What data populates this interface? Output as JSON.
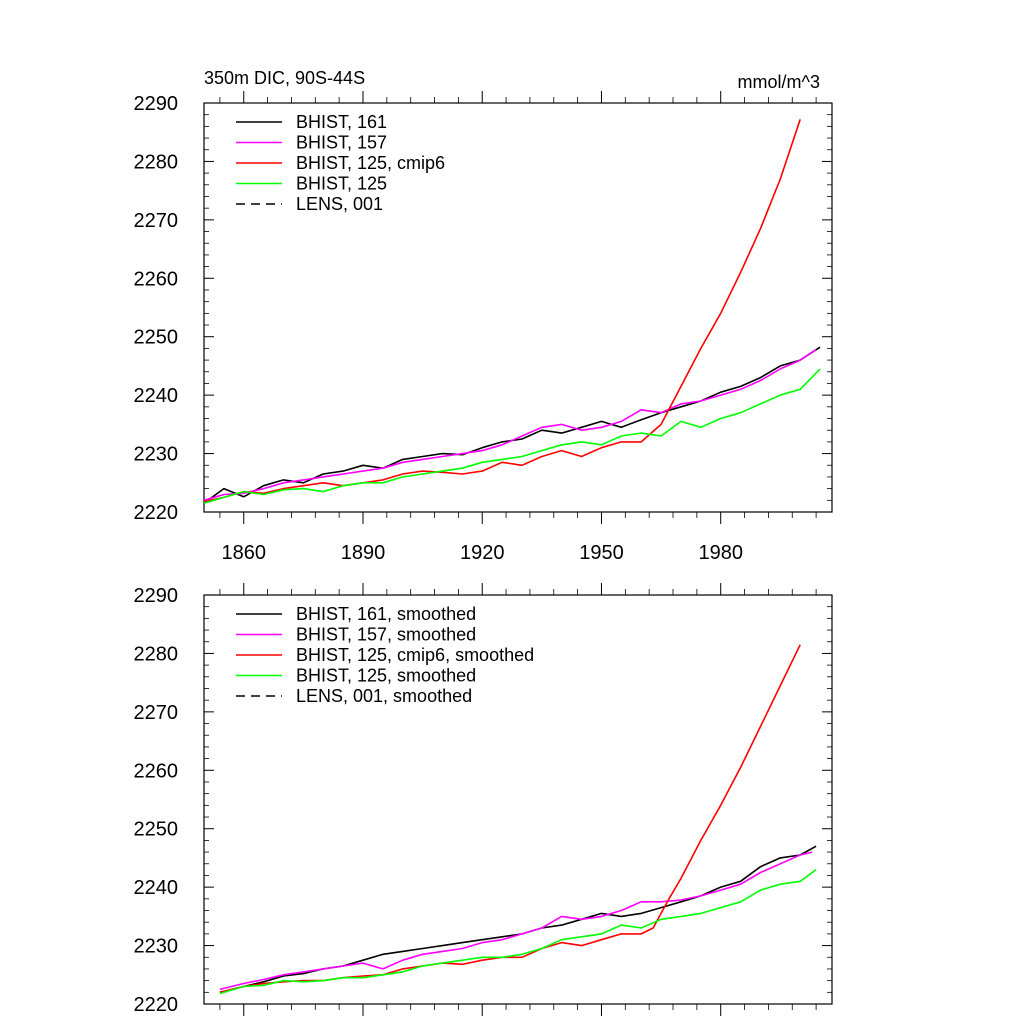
{
  "header": {
    "left_title": "350m DIC, 90S-44S",
    "right_title": "mmol/m^3"
  },
  "colors": {
    "black": "#000000",
    "magenta": "#ff00ff",
    "red": "#ff0000",
    "green": "#00ff00"
  },
  "chart_data": [
    {
      "type": "line",
      "xlim": [
        1850,
        2008
      ],
      "ylim": [
        2220,
        2290
      ],
      "yticks": [
        2220,
        2230,
        2240,
        2250,
        2260,
        2270,
        2280,
        2290
      ],
      "xticks": [
        1860,
        1890,
        1920,
        1950,
        1980
      ],
      "xtick_labels_shown": true,
      "legend": "top-left",
      "series": [
        {
          "name": "BHIST, 161",
          "color": "#000000",
          "dash": false,
          "x": [
            1850,
            1855,
            1860,
            1865,
            1870,
            1875,
            1880,
            1885,
            1890,
            1895,
            1900,
            1905,
            1910,
            1915,
            1920,
            1925,
            1930,
            1935,
            1940,
            1945,
            1950,
            1955,
            1960,
            1965,
            1970,
            1975,
            1980,
            1985,
            1990,
            1995,
            2000,
            2005
          ],
          "y": [
            2221.5,
            2224,
            2222.6,
            2224.5,
            2225.5,
            2225,
            2226.5,
            2227,
            2228,
            2227.5,
            2229,
            2229.5,
            2230,
            2229.8,
            2231,
            2232,
            2232.5,
            2234,
            2233.5,
            2234.5,
            2235.5,
            2234.5,
            2235.8,
            2237,
            2238,
            2239,
            2240.5,
            2241.5,
            2243,
            2245,
            2246,
            2248.2
          ]
        },
        {
          "name": "BHIST, 157",
          "color": "#ff00ff",
          "dash": false,
          "x": [
            1850,
            1855,
            1860,
            1865,
            1870,
            1875,
            1880,
            1885,
            1890,
            1895,
            1900,
            1905,
            1910,
            1915,
            1920,
            1925,
            1930,
            1935,
            1940,
            1945,
            1950,
            1955,
            1960,
            1965,
            1970,
            1975,
            1980,
            1985,
            1990,
            1995,
            2000,
            2004
          ],
          "y": [
            2222,
            2223,
            2223.2,
            2224,
            2225,
            2225.5,
            2226,
            2226.5,
            2227,
            2227.5,
            2228.5,
            2229,
            2229.5,
            2230,
            2230.5,
            2231.5,
            2233,
            2234.5,
            2235,
            2234,
            2234.5,
            2235.5,
            2237.5,
            2237,
            2238.5,
            2239,
            2240,
            2241,
            2242.5,
            2244.5,
            2246,
            2247.8
          ]
        },
        {
          "name": "BHIST, 125, cmip6",
          "color": "#ff0000",
          "dash": false,
          "x": [
            1850,
            1855,
            1860,
            1865,
            1870,
            1875,
            1880,
            1885,
            1890,
            1895,
            1900,
            1905,
            1910,
            1915,
            1920,
            1925,
            1930,
            1935,
            1940,
            1945,
            1950,
            1955,
            1960,
            1965,
            1970,
            1975,
            1980,
            1985,
            1990,
            1995,
            2000
          ],
          "y": [
            2221.8,
            2222.5,
            2223.5,
            2223.2,
            2224,
            2224.5,
            2225,
            2224.5,
            2225,
            2225.5,
            2226.5,
            2227,
            2226.8,
            2226.5,
            2227,
            2228.5,
            2228,
            2229.5,
            2230.5,
            2229.5,
            2231,
            2232,
            2232,
            2235,
            2241.5,
            2248,
            2254,
            2261,
            2268.5,
            2277,
            2287.2
          ]
        },
        {
          "name": "BHIST, 125",
          "color": "#00ff00",
          "dash": false,
          "x": [
            1850,
            1855,
            1860,
            1865,
            1870,
            1875,
            1880,
            1885,
            1890,
            1895,
            1900,
            1905,
            1910,
            1915,
            1920,
            1925,
            1930,
            1935,
            1940,
            1945,
            1950,
            1955,
            1960,
            1965,
            1970,
            1975,
            1980,
            1985,
            1990,
            1995,
            2000,
            2005
          ],
          "y": [
            2221.5,
            2222.5,
            2223.5,
            2223,
            2223.8,
            2224,
            2223.5,
            2224.5,
            2225,
            2225,
            2226,
            2226.5,
            2227,
            2227.5,
            2228.5,
            2229,
            2229.5,
            2230.5,
            2231.5,
            2232,
            2231.5,
            2233,
            2233.5,
            2233,
            2235.5,
            2234.5,
            2236,
            2237,
            2238.5,
            2240,
            2241,
            2244.5
          ]
        },
        {
          "name": "LENS, 001",
          "color": "#000000",
          "dash": true,
          "x": [],
          "y": []
        }
      ]
    },
    {
      "type": "line",
      "xlim": [
        1850,
        2008
      ],
      "ylim": [
        2220,
        2290
      ],
      "yticks": [
        2220,
        2230,
        2240,
        2250,
        2260,
        2270,
        2280,
        2290
      ],
      "xticks": [
        1860,
        1890,
        1920,
        1950,
        1980
      ],
      "xtick_labels_shown": false,
      "legend": "top-left",
      "series": [
        {
          "name": "BHIST, 161, smoothed",
          "color": "#000000",
          "dash": false,
          "x": [
            1854,
            1860,
            1865,
            1870,
            1875,
            1880,
            1885,
            1890,
            1895,
            1900,
            1905,
            1910,
            1915,
            1920,
            1925,
            1930,
            1935,
            1940,
            1945,
            1950,
            1955,
            1960,
            1965,
            1970,
            1975,
            1980,
            1985,
            1990,
            1995,
            2000,
            2004
          ],
          "y": [
            2222,
            2223,
            2223.8,
            2224.8,
            2225.2,
            2226,
            2226.5,
            2227.5,
            2228.5,
            2229,
            2229.5,
            2230,
            2230.5,
            2231,
            2231.5,
            2232,
            2233,
            2233.5,
            2234.5,
            2235.5,
            2235,
            2235.5,
            2236.5,
            2237.5,
            2238.5,
            2240,
            2241,
            2243.5,
            2245,
            2245.5,
            2247
          ]
        },
        {
          "name": "BHIST, 157, smoothed",
          "color": "#ff00ff",
          "dash": false,
          "x": [
            1854,
            1860,
            1865,
            1870,
            1875,
            1880,
            1885,
            1890,
            1895,
            1900,
            1905,
            1910,
            1915,
            1920,
            1925,
            1930,
            1935,
            1940,
            1945,
            1950,
            1955,
            1960,
            1965,
            1970,
            1975,
            1980,
            1985,
            1990,
            1995,
            2000,
            2003
          ],
          "y": [
            2222.5,
            2223.5,
            2224.2,
            2225,
            2225.5,
            2226,
            2226.5,
            2227,
            2226,
            2227.5,
            2228.5,
            2229,
            2229.5,
            2230.5,
            2231,
            2232,
            2233,
            2235,
            2234.5,
            2235,
            2236,
            2237.5,
            2237.5,
            2237.8,
            2238.5,
            2239.5,
            2240.5,
            2242.5,
            2244,
            2245.5,
            2246
          ]
        },
        {
          "name": "BHIST, 125, cmip6, smoothed",
          "color": "#ff0000",
          "dash": false,
          "x": [
            1854,
            1860,
            1865,
            1870,
            1875,
            1880,
            1885,
            1890,
            1895,
            1900,
            1905,
            1910,
            1915,
            1920,
            1925,
            1930,
            1935,
            1940,
            1945,
            1950,
            1955,
            1960,
            1963,
            1967,
            1970,
            1975,
            1980,
            1985,
            1990,
            1995,
            2000
          ],
          "y": [
            2222,
            2223,
            2223.5,
            2223.8,
            2224,
            2224,
            2224.5,
            2224.8,
            2225,
            2226,
            2226.5,
            2227,
            2226.8,
            2227.5,
            2228,
            2228,
            2229.5,
            2230.5,
            2230,
            2231,
            2232,
            2232,
            2233,
            2238,
            2241.5,
            2248,
            2254,
            2260.5,
            2267.5,
            2274.5,
            2281.5
          ]
        },
        {
          "name": "BHIST, 125, smoothed",
          "color": "#00ff00",
          "dash": false,
          "x": [
            1854,
            1860,
            1865,
            1870,
            1875,
            1880,
            1885,
            1890,
            1895,
            1900,
            1905,
            1910,
            1915,
            1920,
            1925,
            1930,
            1935,
            1940,
            1945,
            1950,
            1955,
            1960,
            1965,
            1970,
            1975,
            1980,
            1985,
            1990,
            1995,
            2000,
            2004
          ],
          "y": [
            2221.8,
            2223,
            2223.2,
            2224,
            2223.8,
            2224,
            2224.5,
            2224.5,
            2225,
            2225.5,
            2226.5,
            2227,
            2227.5,
            2228,
            2228,
            2228.5,
            2229.5,
            2231,
            2231.5,
            2232,
            2233.5,
            2233,
            2234.5,
            2235,
            2235.5,
            2236.5,
            2237.5,
            2239.5,
            2240.5,
            2241,
            2243
          ]
        },
        {
          "name": "LENS, 001, smoothed",
          "color": "#000000",
          "dash": true,
          "x": [],
          "y": []
        }
      ]
    }
  ]
}
